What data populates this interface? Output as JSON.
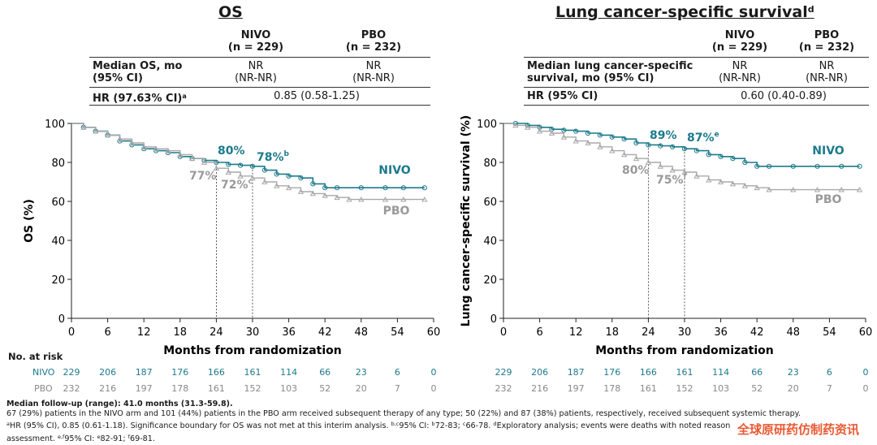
{
  "colors": {
    "nivo": "#1c7a8c",
    "pbo": "#a8a8a8",
    "text": "#1a1a1a",
    "watermark": "#e8491d"
  },
  "left_table": {
    "title": "OS",
    "col1_header": [
      "NIVO",
      "(n = 229)"
    ],
    "col2_header": [
      "PBO",
      "(n = 232)"
    ],
    "row1_label": [
      "Median OS, mo",
      "(95% CI)"
    ],
    "row1_nivo": [
      "NR",
      "(NR-NR)"
    ],
    "row1_pbo": [
      "NR",
      "(NR-NR)"
    ],
    "row2_label": "HR (97.63% CI)",
    "row2_label_sup": "a",
    "row2_value": "0.85 (0.58-1.25)"
  },
  "right_table": {
    "title": "Lung cancer-specific survival",
    "title_sup": "d",
    "col1_header": [
      "NIVO",
      "(n = 229)"
    ],
    "col2_header": [
      "PBO",
      "(n = 232)"
    ],
    "row1_label": [
      "Median lung cancer-specific",
      "survival, mo (95% CI)"
    ],
    "row1_nivo": [
      "NR",
      "(NR-NR)"
    ],
    "row1_pbo": [
      "NR",
      "(NR-NR)"
    ],
    "row2_label": "HR (95% CI)",
    "row2_value": "0.60 (0.40-0.89)"
  },
  "risk_header": "No. at risk",
  "chart_data": [
    {
      "type": "line",
      "ylabel": "OS (%)",
      "xlabel": "Months from randomization",
      "xlim": [
        0,
        60
      ],
      "ylim": [
        0,
        100
      ],
      "xticks": [
        0,
        6,
        12,
        18,
        24,
        30,
        36,
        42,
        48,
        54,
        60
      ],
      "yticks": [
        0,
        20,
        40,
        60,
        80,
        100
      ],
      "series": [
        {
          "name": "NIVO",
          "points": [
            [
              0,
              100
            ],
            [
              2,
              98
            ],
            [
              4,
              96
            ],
            [
              6,
              94
            ],
            [
              8,
              91
            ],
            [
              10,
              89
            ],
            [
              12,
              87
            ],
            [
              14,
              86
            ],
            [
              16,
              85
            ],
            [
              18,
              83
            ],
            [
              20,
              82
            ],
            [
              22,
              81
            ],
            [
              24,
              80
            ],
            [
              26,
              79
            ],
            [
              28,
              78.5
            ],
            [
              30,
              78
            ],
            [
              32,
              76
            ],
            [
              34,
              74
            ],
            [
              36,
              73
            ],
            [
              38,
              72
            ],
            [
              40,
              69
            ],
            [
              42,
              67
            ],
            [
              44,
              67
            ],
            [
              48,
              67
            ],
            [
              52,
              67
            ],
            [
              55,
              67
            ],
            [
              58.5,
              67
            ]
          ]
        },
        {
          "name": "PBO",
          "points": [
            [
              0,
              100
            ],
            [
              2,
              98
            ],
            [
              4,
              96
            ],
            [
              6,
              94
            ],
            [
              8,
              92
            ],
            [
              10,
              90
            ],
            [
              12,
              88
            ],
            [
              14,
              87
            ],
            [
              16,
              86
            ],
            [
              18,
              84
            ],
            [
              20,
              82
            ],
            [
              22,
              80
            ],
            [
              24,
              77
            ],
            [
              26,
              75
            ],
            [
              28,
              73
            ],
            [
              30,
              72
            ],
            [
              32,
              70
            ],
            [
              34,
              68
            ],
            [
              36,
              67
            ],
            [
              38,
              65
            ],
            [
              40,
              64
            ],
            [
              42,
              63
            ],
            [
              44,
              62
            ],
            [
              46,
              61
            ],
            [
              48,
              61
            ],
            [
              52,
              61
            ],
            [
              55,
              61
            ],
            [
              58.5,
              61
            ]
          ]
        }
      ],
      "annotations": [
        {
          "text": "80%",
          "series": "NIVO",
          "x": 24,
          "y": 80
        },
        {
          "text": "78%",
          "sup": "b",
          "series": "NIVO",
          "x": 30,
          "y": 78
        },
        {
          "text": "77%",
          "series": "PBO",
          "x": 24,
          "y": 77
        },
        {
          "text": "72%",
          "sup": "c",
          "series": "PBO",
          "x": 30,
          "y": 72
        }
      ],
      "risk_table": {
        "times": [
          0,
          6,
          12,
          18,
          24,
          30,
          36,
          42,
          48,
          54,
          60
        ],
        "NIVO": [
          "229",
          "206",
          "187",
          "176",
          "166",
          "161",
          "114",
          "66",
          "23",
          "6",
          "0"
        ],
        "PBO": [
          "232",
          "216",
          "197",
          "178",
          "161",
          "152",
          "103",
          "52",
          "20",
          "7",
          "0"
        ]
      }
    },
    {
      "type": "line",
      "ylabel": "Lung cancer-specific survival (%)",
      "xlabel": "Months from randomization",
      "xlim": [
        0,
        60
      ],
      "ylim": [
        0,
        100
      ],
      "xticks": [
        0,
        6,
        12,
        18,
        24,
        30,
        36,
        42,
        48,
        54,
        60
      ],
      "yticks": [
        0,
        20,
        40,
        60,
        80,
        100
      ],
      "series": [
        {
          "name": "NIVO",
          "points": [
            [
              0,
              100
            ],
            [
              2,
              100
            ],
            [
              4,
              99
            ],
            [
              6,
              98
            ],
            [
              8,
              97
            ],
            [
              10,
              96.5
            ],
            [
              12,
              96
            ],
            [
              14,
              95
            ],
            [
              16,
              94
            ],
            [
              18,
              93
            ],
            [
              20,
              92
            ],
            [
              22,
              90
            ],
            [
              24,
              89
            ],
            [
              26,
              88.5
            ],
            [
              28,
              88
            ],
            [
              30,
              87
            ],
            [
              32,
              86
            ],
            [
              34,
              84
            ],
            [
              36,
              83
            ],
            [
              38,
              82
            ],
            [
              40,
              80
            ],
            [
              42,
              78
            ],
            [
              44,
              78
            ],
            [
              48,
              78
            ],
            [
              52,
              78
            ],
            [
              56,
              78
            ],
            [
              59,
              78
            ]
          ]
        },
        {
          "name": "PBO",
          "points": [
            [
              0,
              100
            ],
            [
              2,
              99
            ],
            [
              4,
              98
            ],
            [
              6,
              96
            ],
            [
              8,
              95
            ],
            [
              10,
              93
            ],
            [
              12,
              91
            ],
            [
              14,
              90
            ],
            [
              16,
              88
            ],
            [
              18,
              86
            ],
            [
              20,
              84
            ],
            [
              22,
              82
            ],
            [
              24,
              80
            ],
            [
              26,
              78
            ],
            [
              28,
              76
            ],
            [
              30,
              75
            ],
            [
              32,
              73
            ],
            [
              34,
              71
            ],
            [
              36,
              70
            ],
            [
              38,
              69
            ],
            [
              40,
              68
            ],
            [
              42,
              67
            ],
            [
              44,
              66
            ],
            [
              48,
              66
            ],
            [
              52,
              66
            ],
            [
              56,
              66
            ],
            [
              59,
              66
            ]
          ]
        }
      ],
      "annotations": [
        {
          "text": "89%",
          "series": "NIVO",
          "x": 24,
          "y": 89
        },
        {
          "text": "87%",
          "sup": "e",
          "series": "NIVO",
          "x": 30,
          "y": 87
        },
        {
          "text": "80%",
          "series": "PBO",
          "x": 24,
          "y": 80
        },
        {
          "text": "75%",
          "sup": "f",
          "series": "PBO",
          "x": 30,
          "y": 75
        }
      ],
      "risk_table": {
        "times": [
          0,
          6,
          12,
          18,
          24,
          30,
          36,
          42,
          48,
          54,
          60
        ],
        "NIVO": [
          "229",
          "206",
          "187",
          "176",
          "166",
          "161",
          "114",
          "66",
          "23",
          "6",
          "0"
        ],
        "PBO": [
          "232",
          "216",
          "197",
          "178",
          "161",
          "152",
          "103",
          "52",
          "20",
          "7",
          "0"
        ]
      }
    }
  ],
  "footnotes": {
    "line1": "Median follow-up (range): 41.0 months (31.3-59.8).",
    "line2": "67 (29%) patients in the NIVO arm and 101 (44%) patients in the PBO arm received subsequent therapy of any type; 50 (22%) and 87 (38%) patients, respectively, received subsequent systemic therapy.",
    "line3a_sup": "a",
    "line3a": "HR (95% CI), 0.85 (0.61-1.18). Significance boundary for OS was not met at this interim analysis. ",
    "line3b_sup": "b,c",
    "line3b": "95% CI: ",
    "line3c_sup": "b",
    "line3c": "72-83; ",
    "line3d_sup": "c",
    "line3d": "66-78. ",
    "line3e_sup": "d",
    "line3e": "Exploratory analysis; events were deaths with noted reason",
    "line4": "assessment. ",
    "line4b_sup": "e,f",
    "line4b": "95% CI: ",
    "line4c_sup": "e",
    "line4c": "82-91; ",
    "line4d_sup": "f",
    "line4d": "69-81."
  },
  "watermark": "全球原研药仿制药资讯"
}
